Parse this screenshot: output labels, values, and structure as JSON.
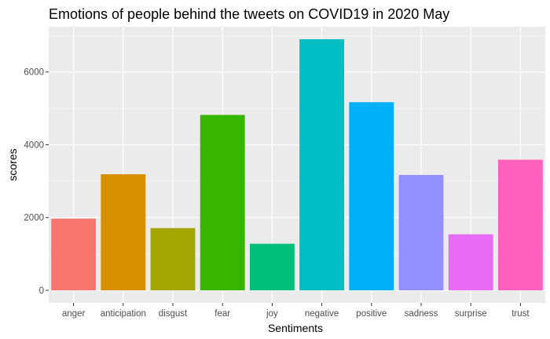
{
  "chart_data": {
    "type": "bar",
    "title": "Emotions of people behind the tweets on COVID19 in 2020 May",
    "xlabel": "Sentiments",
    "ylabel": "scores",
    "categories": [
      "anger",
      "anticipation",
      "disgust",
      "fear",
      "joy",
      "negative",
      "positive",
      "sadness",
      "surprise",
      "trust"
    ],
    "values": [
      1970,
      3190,
      1710,
      4820,
      1280,
      6900,
      5170,
      3170,
      1540,
      3590
    ],
    "colors": [
      "#F8766D",
      "#D89000",
      "#A3A500",
      "#39B600",
      "#00BF7D",
      "#00BFC4",
      "#00B0F6",
      "#9590FF",
      "#E76BF3",
      "#FF62BC"
    ],
    "y_ticks": [
      0,
      2000,
      4000,
      6000
    ],
    "ylim": [
      -345,
      7245
    ],
    "grid": true,
    "panel_background": "#EBEBEB",
    "legend": "none"
  }
}
